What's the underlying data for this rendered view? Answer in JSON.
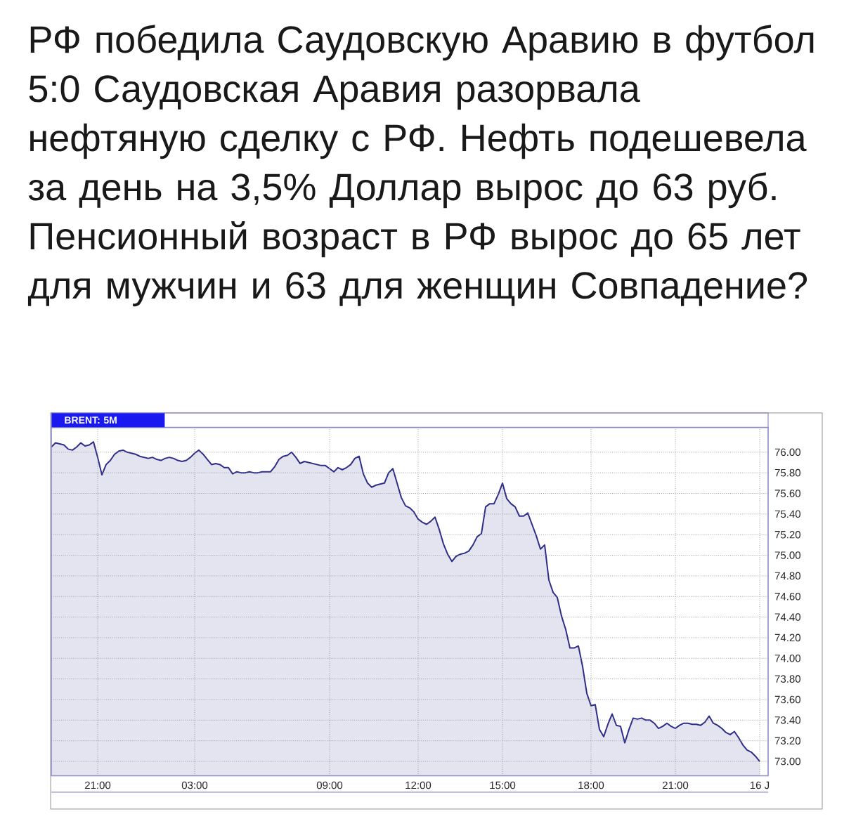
{
  "chart_data": {
    "type": "area",
    "title": "BRENT: 5M",
    "annotations": [
      "РФ победила Саудовскую Аравию в футбол 5:0 Саудовская Аравия разорвала нефтяную сделку с РФ. Нефть подешевела за день на 3,5% Доллар вырос до 63 руб. Пенсионный возраст в РФ вырос до 65 лет для мужчин и 63 для женщин Совпадение?"
    ],
    "categories": [
      null,
      null,
      null,
      null,
      null,
      null,
      null,
      null,
      null,
      null,
      null,
      "21:00",
      null,
      null,
      null,
      null,
      null,
      null,
      null,
      null,
      null,
      null,
      null,
      null,
      null,
      null,
      null,
      null,
      null,
      null,
      null,
      null,
      null,
      null,
      "03:00",
      null,
      null,
      null,
      null,
      null,
      null,
      null,
      null,
      null,
      null,
      null,
      null,
      null,
      null,
      null,
      null,
      null,
      null,
      null,
      null,
      null,
      null,
      null,
      null,
      null,
      null,
      null,
      null,
      null,
      null,
      null,
      "09:00",
      null,
      null,
      null,
      null,
      null,
      null,
      null,
      null,
      null,
      null,
      null,
      null,
      null,
      null,
      null,
      null,
      null,
      null,
      null,
      null,
      "12:00",
      null,
      null,
      null,
      null,
      null,
      null,
      null,
      null,
      null,
      null,
      null,
      null,
      null,
      null,
      null,
      null,
      null,
      null,
      null,
      "15:00",
      null,
      null,
      null,
      null,
      null,
      null,
      null,
      null,
      null,
      null,
      null,
      null,
      null,
      null,
      null,
      null,
      null,
      null,
      null,
      null,
      "18:00",
      null,
      null,
      null,
      null,
      null,
      null,
      null,
      null,
      null,
      null,
      null,
      null,
      null,
      null,
      null,
      null,
      null,
      null,
      null,
      "21:00",
      null,
      null,
      null,
      null,
      null,
      null,
      null,
      null,
      null,
      null,
      null,
      null,
      null,
      null,
      null,
      null,
      null,
      null,
      null,
      "16 J",
      null,
      null
    ],
    "series": [
      {
        "color": "#2e2e8a",
        "values": [
          76.05,
          76.09,
          76.08,
          76.07,
          76.03,
          76.02,
          76.05,
          76.09,
          76.06,
          76.07,
          76.1,
          75.95,
          75.78,
          75.88,
          75.92,
          75.98,
          76.01,
          76.02,
          76.0,
          75.99,
          75.98,
          75.96,
          75.95,
          75.94,
          75.95,
          75.93,
          75.92,
          75.94,
          75.95,
          75.94,
          75.92,
          75.91,
          75.92,
          75.95,
          75.99,
          76.02,
          75.98,
          75.93,
          75.88,
          75.89,
          75.88,
          75.85,
          75.85,
          75.79,
          75.81,
          75.8,
          75.8,
          75.81,
          75.8,
          75.8,
          75.81,
          75.81,
          75.81,
          75.86,
          75.93,
          75.96,
          75.97,
          76.0,
          75.95,
          75.89,
          75.91,
          75.9,
          75.89,
          75.88,
          75.87,
          75.87,
          75.84,
          75.81,
          75.85,
          75.83,
          75.85,
          75.88,
          75.94,
          75.96,
          75.79,
          75.7,
          75.66,
          75.68,
          75.69,
          75.7,
          75.8,
          75.84,
          75.7,
          75.56,
          75.48,
          75.46,
          75.42,
          75.35,
          75.32,
          75.3,
          75.33,
          75.37,
          75.25,
          75.11,
          75.01,
          74.94,
          74.99,
          75.01,
          75.02,
          75.04,
          75.1,
          75.18,
          75.21,
          75.47,
          75.5,
          75.5,
          75.59,
          75.7,
          75.55,
          75.5,
          75.47,
          75.38,
          75.38,
          75.41,
          75.3,
          75.19,
          75.06,
          75.1,
          74.76,
          74.64,
          74.59,
          74.41,
          74.28,
          74.1,
          74.1,
          74.12,
          73.92,
          73.66,
          73.54,
          73.55,
          73.31,
          73.24,
          73.36,
          73.46,
          73.35,
          73.34,
          73.18,
          73.31,
          73.42,
          73.41,
          73.42,
          73.4,
          73.4,
          73.37,
          73.32,
          73.34,
          73.37,
          73.34,
          73.32,
          73.35,
          73.37,
          73.37,
          73.36,
          73.36,
          73.35,
          73.38,
          73.44,
          73.37,
          73.35,
          73.32,
          73.28,
          73.26,
          73.29,
          73.23,
          73.16,
          73.11,
          73.09,
          73.05,
          73.0,
          null,
          null
        ]
      }
    ],
    "ylim": [
      72.86,
      76.24
    ],
    "yticks": [
      {
        "value": 73,
        "label": "73.00"
      },
      {
        "value": 73.2,
        "label": "73.20"
      },
      {
        "value": 73.4,
        "label": "73.40"
      },
      {
        "value": 73.6,
        "label": "73.60"
      },
      {
        "value": 73.8,
        "label": "73.80"
      },
      {
        "value": 74,
        "label": "74.00"
      },
      {
        "value": 74.2,
        "label": "74.20"
      },
      {
        "value": 74.4,
        "label": "74.40"
      },
      {
        "value": 74.6,
        "label": "74.60"
      },
      {
        "value": 74.8,
        "label": "74.80"
      },
      {
        "value": 75,
        "label": "75.00"
      },
      {
        "value": 75.2,
        "label": "75.20"
      },
      {
        "value": 75.4,
        "label": "75.40"
      },
      {
        "value": 75.6,
        "label": "75.60"
      },
      {
        "value": 75.8,
        "label": "75.80"
      },
      {
        "value": 76,
        "label": "76.00"
      }
    ],
    "grid": true,
    "line_style": "solid"
  }
}
